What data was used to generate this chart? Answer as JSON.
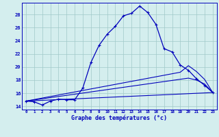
{
  "title": "Graphe des températures (°c)",
  "bg_color": "#d4eeee",
  "grid_color": "#a0c8c8",
  "line_color": "#0000bb",
  "x_labels": [
    "0",
    "1",
    "2",
    "3",
    "4",
    "5",
    "6",
    "7",
    "8",
    "9",
    "10",
    "11",
    "12",
    "13",
    "14",
    "15",
    "16",
    "17",
    "18",
    "19",
    "20",
    "21",
    "22",
    "23"
  ],
  "xlim": [
    -0.5,
    23.5
  ],
  "ylim": [
    13.5,
    29.8
  ],
  "yticks": [
    14,
    16,
    18,
    20,
    22,
    24,
    26,
    28
  ],
  "curve1_x": [
    0,
    1,
    2,
    3,
    4,
    5,
    6,
    7,
    8,
    9,
    10,
    11,
    12,
    13,
    14,
    15,
    16,
    17,
    18,
    19,
    20,
    21,
    22,
    23
  ],
  "curve1_y": [
    14.8,
    14.7,
    14.2,
    14.8,
    15.1,
    15.0,
    15.0,
    16.8,
    20.7,
    23.3,
    25.0,
    26.2,
    27.8,
    28.2,
    29.3,
    28.3,
    26.5,
    22.8,
    22.3,
    20.3,
    19.5,
    18.2,
    17.2,
    16.1
  ],
  "curve2_x": [
    0,
    23
  ],
  "curve2_y": [
    14.8,
    16.1
  ],
  "curve3_x": [
    0,
    19,
    20,
    21,
    22,
    23
  ],
  "curve3_y": [
    14.8,
    19.2,
    20.2,
    19.3,
    18.1,
    16.1
  ],
  "curve4_x": [
    0,
    20,
    21,
    22,
    23
  ],
  "curve4_y": [
    14.8,
    18.3,
    18.0,
    17.4,
    16.1
  ]
}
